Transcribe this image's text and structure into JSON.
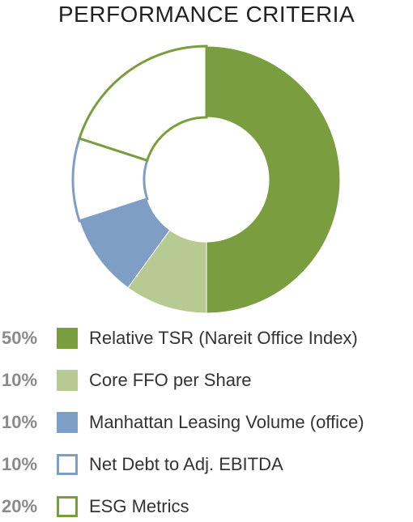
{
  "title": "PERFORMANCE CRITERIA",
  "colors": {
    "relative_tsr": "#7a9e3f",
    "core_ffo": "#b8ca94",
    "manhattan_leasing": "#7e9ec5",
    "net_debt": "#7e9ec5",
    "esg": "#7a9e3f"
  },
  "chart_data": {
    "type": "pie",
    "title": "PERFORMANCE CRITERIA",
    "style": "donut",
    "slices": [
      {
        "label": "Relative TSR (Nareit Office Index)",
        "value": 50,
        "display": "50%",
        "fill": "solid",
        "color": "#7a9e3f"
      },
      {
        "label": "Core FFO per Share",
        "value": 10,
        "display": "10%",
        "fill": "solid",
        "color": "#b8ca94"
      },
      {
        "label": "Manhattan Leasing Volume (office)",
        "value": 10,
        "display": "10%",
        "fill": "solid",
        "color": "#7e9ec5"
      },
      {
        "label": "Net Debt to Adj. EBITDA",
        "value": 10,
        "display": "10%",
        "fill": "outline",
        "color": "#7e9ec5"
      },
      {
        "label": "ESG Metrics",
        "value": 20,
        "display": "20%",
        "fill": "outline",
        "color": "#7a9e3f"
      }
    ],
    "legend_position": "bottom"
  }
}
